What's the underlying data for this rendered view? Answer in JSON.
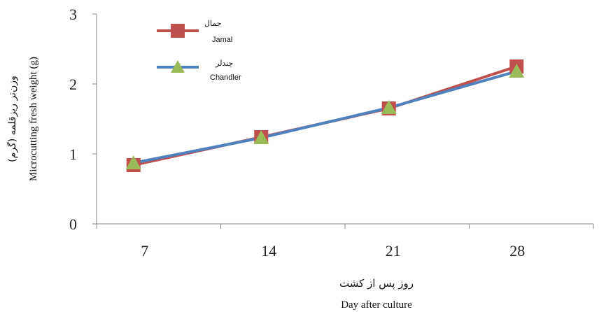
{
  "chart_data": {
    "type": "line",
    "categories": [
      "7",
      "14",
      "21",
      "28"
    ],
    "series": [
      {
        "name": "Jamal",
        "name_fa": "جمال",
        "values": [
          0.84,
          1.24,
          1.65,
          2.25
        ],
        "color": "#c0504d",
        "marker": "square"
      },
      {
        "name": "Chandler",
        "name_fa": "چندلر",
        "values": [
          0.87,
          1.23,
          1.66,
          2.18
        ],
        "color": "#4f81bd",
        "marker_color": "#9bbb59",
        "marker": "triangle"
      }
    ],
    "ylim": [
      0,
      3
    ],
    "yticks": [
      "0",
      "1",
      "2",
      "3"
    ],
    "ylabel_fa": "وزن‌تر ریزقلمه (گرم)",
    "ylabel": "Microcutting fresh weight (g)",
    "xlabel_fa": "روز پس از کشت",
    "xlabel": "Day after culture",
    "grid": false,
    "legend_position": "top-left"
  }
}
